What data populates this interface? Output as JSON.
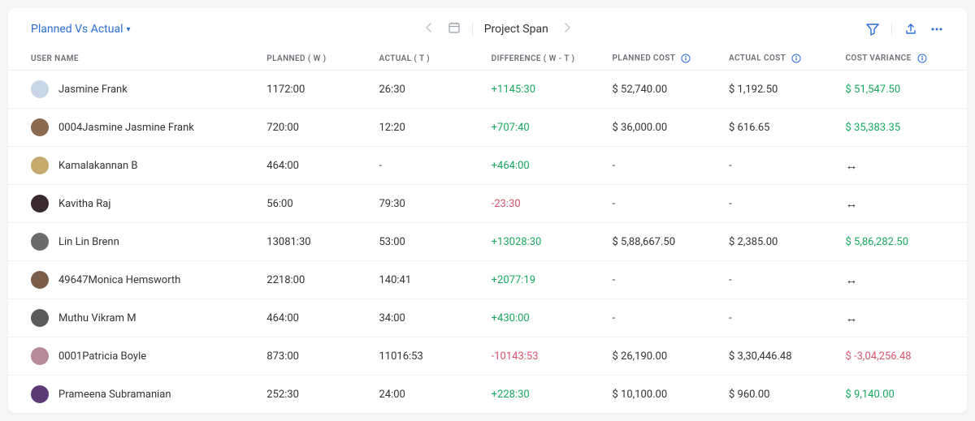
{
  "header": {
    "dropdown_label": "Planned Vs Actual",
    "span_label": "Project Span"
  },
  "columns": {
    "user": "USER NAME",
    "planned": "PLANNED  ( W )",
    "actual": "ACTUAL  ( T )",
    "difference": "DIFFERENCE  ( W - T )",
    "planned_cost": "PLANNED COST",
    "actual_cost": "ACTUAL COST",
    "cost_variance": "COST VARIANCE"
  },
  "rows": [
    {
      "name": "Jasmine Frank",
      "avatar": "#c9d6e8",
      "planned": "1172:00",
      "actual": "26:30",
      "diff": "+1145:30",
      "diff_sign": "pos",
      "pcost": "$ 52,740.00",
      "acost": "$ 1,192.50",
      "var": "$ 51,547.50",
      "var_sign": "pos"
    },
    {
      "name": "0004Jasmine Jasmine Frank",
      "avatar": "#8b6a4f",
      "planned": "720:00",
      "actual": "12:20",
      "diff": "+707:40",
      "diff_sign": "pos",
      "pcost": "$ 36,000.00",
      "acost": "$ 616.65",
      "var": "$ 35,383.35",
      "var_sign": "pos"
    },
    {
      "name": "Kamalakannan B",
      "avatar": "#c7a96c",
      "planned": "464:00",
      "actual": "-",
      "diff": "+464:00",
      "diff_sign": "pos",
      "pcost": "-",
      "acost": "-",
      "var": "↔",
      "var_sign": "neutral"
    },
    {
      "name": "Kavitha Raj",
      "avatar": "#3a2a2d",
      "planned": "56:00",
      "actual": "79:30",
      "diff": "-23:30",
      "diff_sign": "neg",
      "pcost": "-",
      "acost": "-",
      "var": "↔",
      "var_sign": "neutral"
    },
    {
      "name": "Lin Lin Brenn",
      "avatar": "#6b6b6b",
      "planned": "13081:30",
      "actual": "53:00",
      "diff": "+13028:30",
      "diff_sign": "pos",
      "pcost": "$ 5,88,667.50",
      "acost": "$ 2,385.00",
      "var": "$ 5,86,282.50",
      "var_sign": "pos"
    },
    {
      "name": "49647Monica Hemsworth",
      "avatar": "#7a5c4a",
      "planned": "2218:00",
      "actual": "140:41",
      "diff": "+2077:19",
      "diff_sign": "pos",
      "pcost": "-",
      "acost": "-",
      "var": "↔",
      "var_sign": "neutral"
    },
    {
      "name": "Muthu Vikram M",
      "avatar": "#5a5a5a",
      "planned": "464:00",
      "actual": "34:00",
      "diff": "+430:00",
      "diff_sign": "pos",
      "pcost": "-",
      "acost": "-",
      "var": "↔",
      "var_sign": "neutral"
    },
    {
      "name": "0001Patricia Boyle",
      "avatar": "#b88a9a",
      "planned": "873:00",
      "actual": "11016:53",
      "diff": "-10143:53",
      "diff_sign": "neg",
      "pcost": "$ 26,190.00",
      "acost": "$ 3,30,446.48",
      "var": "$ -3,04,256.48",
      "var_sign": "neg"
    },
    {
      "name": "Prameena Subramanian",
      "avatar": "#5d3a75",
      "planned": "252:30",
      "actual": "24:00",
      "diff": "+228:30",
      "diff_sign": "pos",
      "pcost": "$ 10,100.00",
      "acost": "$ 960.00",
      "var": "$ 9,140.00",
      "var_sign": "pos"
    }
  ],
  "colors": {
    "link": "#2a6ed6",
    "positive": "#17a85f",
    "negative": "#d9536b"
  }
}
